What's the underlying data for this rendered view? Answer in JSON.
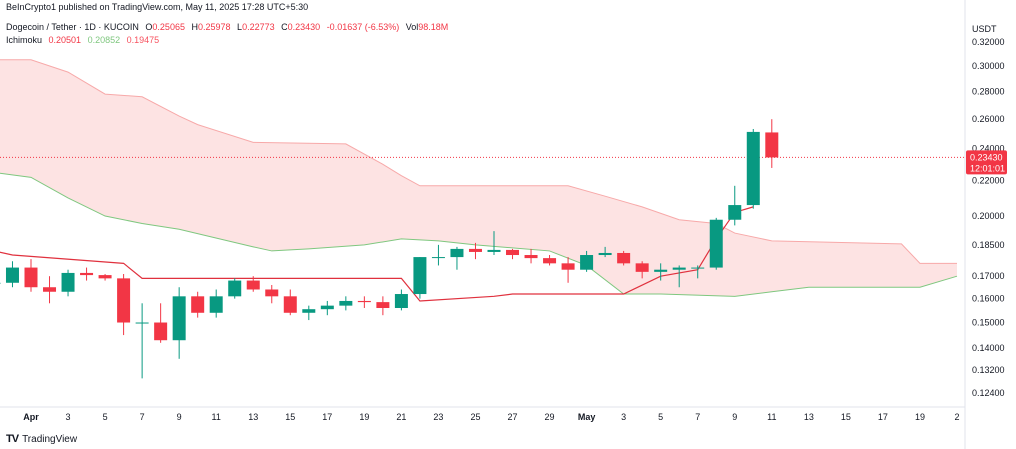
{
  "header": {
    "publisher_line": "BeInCrypto1 published on TradingView.com, May 11, 2025 17:28 UTC+5:30"
  },
  "legend": {
    "symbol": "Dogecoin / Tether · 1D · KUCOIN",
    "open_label": "O",
    "open": "0.25065",
    "high_label": "H",
    "high": "0.25978",
    "low_label": "L",
    "low": "0.22773",
    "close_label": "C",
    "close": "0.23430",
    "change": "-0.01637 (-6.53%)",
    "volume_label": "Vol",
    "volume": "98.18M",
    "indicator_name": "Ichimoku",
    "indicator_values": [
      "0.20501",
      "0.20852",
      "0.19475"
    ]
  },
  "currency": "USDT",
  "price_tag": {
    "price": "0.23430",
    "countdown": "12:01:01"
  },
  "footer": {
    "brand": "TradingView",
    "logo_text": "TV"
  },
  "colors": {
    "up": "#089981",
    "down": "#f23645",
    "cloud_fill": "#fde3e3",
    "cloud_upper": "#f7a9a9",
    "cloud_lower": "#7fc77f",
    "base_line": "#e0313e"
  },
  "chart_data": {
    "type": "candlestick",
    "title": "Dogecoin / Tether · 1D · KUCOIN",
    "y_scale": "log",
    "y_ticks": [
      "0.32000",
      "0.30000",
      "0.28000",
      "0.26000",
      "0.24000",
      "0.22000",
      "0.20000",
      "0.18500",
      "0.17000",
      "0.16000",
      "0.15000",
      "0.14000",
      "0.13200",
      "0.12400"
    ],
    "x_ticks": [
      "Apr",
      "3",
      "5",
      "7",
      "9",
      "11",
      "13",
      "15",
      "17",
      "19",
      "21",
      "23",
      "25",
      "27",
      "29",
      "May",
      "3",
      "5",
      "7",
      "9",
      "11",
      "13",
      "15",
      "17",
      "19",
      "2"
    ],
    "x_tick_dates": [
      "2025-04-01",
      "2025-04-03",
      "2025-04-05",
      "2025-04-07",
      "2025-04-09",
      "2025-04-11",
      "2025-04-13",
      "2025-04-15",
      "2025-04-17",
      "2025-04-19",
      "2025-04-21",
      "2025-04-23",
      "2025-04-25",
      "2025-04-27",
      "2025-04-29",
      "2025-05-01",
      "2025-05-03",
      "2025-05-05",
      "2025-05-07",
      "2025-05-09",
      "2025-05-11",
      "2025-05-13",
      "2025-05-15",
      "2025-05-17",
      "2025-05-19",
      "2025-05-21"
    ],
    "last_price": 0.2343,
    "candles": [
      {
        "date": "2025-03-30",
        "o": 0.167,
        "h": 0.1715,
        "l": 0.161,
        "c": 0.167
      },
      {
        "date": "2025-03-31",
        "o": 0.167,
        "h": 0.177,
        "l": 0.165,
        "c": 0.174
      },
      {
        "date": "2025-04-01",
        "o": 0.174,
        "h": 0.178,
        "l": 0.163,
        "c": 0.165
      },
      {
        "date": "2025-04-02",
        "o": 0.165,
        "h": 0.17,
        "l": 0.158,
        "c": 0.163
      },
      {
        "date": "2025-04-03",
        "o": 0.163,
        "h": 0.173,
        "l": 0.161,
        "c": 0.1715
      },
      {
        "date": "2025-04-04",
        "o": 0.1715,
        "h": 0.174,
        "l": 0.168,
        "c": 0.1705
      },
      {
        "date": "2025-04-05",
        "o": 0.1705,
        "h": 0.171,
        "l": 0.168,
        "c": 0.169
      },
      {
        "date": "2025-04-06",
        "o": 0.169,
        "h": 0.171,
        "l": 0.145,
        "c": 0.15
      },
      {
        "date": "2025-04-07",
        "o": 0.15,
        "h": 0.158,
        "l": 0.129,
        "c": 0.15
      },
      {
        "date": "2025-04-08",
        "o": 0.15,
        "h": 0.158,
        "l": 0.142,
        "c": 0.143
      },
      {
        "date": "2025-04-09",
        "o": 0.143,
        "h": 0.165,
        "l": 0.136,
        "c": 0.161
      },
      {
        "date": "2025-04-10",
        "o": 0.161,
        "h": 0.163,
        "l": 0.152,
        "c": 0.154
      },
      {
        "date": "2025-04-11",
        "o": 0.154,
        "h": 0.164,
        "l": 0.152,
        "c": 0.161
      },
      {
        "date": "2025-04-12",
        "o": 0.161,
        "h": 0.169,
        "l": 0.16,
        "c": 0.168
      },
      {
        "date": "2025-04-13",
        "o": 0.168,
        "h": 0.17,
        "l": 0.163,
        "c": 0.164
      },
      {
        "date": "2025-04-14",
        "o": 0.164,
        "h": 0.166,
        "l": 0.158,
        "c": 0.161
      },
      {
        "date": "2025-04-15",
        "o": 0.161,
        "h": 0.164,
        "l": 0.153,
        "c": 0.154
      },
      {
        "date": "2025-04-16",
        "o": 0.154,
        "h": 0.157,
        "l": 0.151,
        "c": 0.1555
      },
      {
        "date": "2025-04-17",
        "o": 0.1555,
        "h": 0.159,
        "l": 0.153,
        "c": 0.157
      },
      {
        "date": "2025-04-18",
        "o": 0.157,
        "h": 0.161,
        "l": 0.155,
        "c": 0.159
      },
      {
        "date": "2025-04-19",
        "o": 0.159,
        "h": 0.161,
        "l": 0.156,
        "c": 0.1585
      },
      {
        "date": "2025-04-20",
        "o": 0.1585,
        "h": 0.161,
        "l": 0.153,
        "c": 0.156
      },
      {
        "date": "2025-04-21",
        "o": 0.156,
        "h": 0.164,
        "l": 0.155,
        "c": 0.162
      },
      {
        "date": "2025-04-22",
        "o": 0.162,
        "h": 0.179,
        "l": 0.16,
        "c": 0.179
      },
      {
        "date": "2025-04-23",
        "o": 0.179,
        "h": 0.185,
        "l": 0.175,
        "c": 0.179
      },
      {
        "date": "2025-04-24",
        "o": 0.179,
        "h": 0.184,
        "l": 0.173,
        "c": 0.183
      },
      {
        "date": "2025-04-25",
        "o": 0.183,
        "h": 0.186,
        "l": 0.178,
        "c": 0.1815
      },
      {
        "date": "2025-04-26",
        "o": 0.1815,
        "h": 0.192,
        "l": 0.18,
        "c": 0.1825
      },
      {
        "date": "2025-04-27",
        "o": 0.1825,
        "h": 0.183,
        "l": 0.178,
        "c": 0.18
      },
      {
        "date": "2025-04-28",
        "o": 0.18,
        "h": 0.183,
        "l": 0.176,
        "c": 0.1785
      },
      {
        "date": "2025-04-29",
        "o": 0.1785,
        "h": 0.18,
        "l": 0.175,
        "c": 0.176
      },
      {
        "date": "2025-04-30",
        "o": 0.176,
        "h": 0.179,
        "l": 0.167,
        "c": 0.173
      },
      {
        "date": "2025-05-01",
        "o": 0.173,
        "h": 0.182,
        "l": 0.172,
        "c": 0.18
      },
      {
        "date": "2025-05-02",
        "o": 0.18,
        "h": 0.184,
        "l": 0.179,
        "c": 0.181
      },
      {
        "date": "2025-05-03",
        "o": 0.181,
        "h": 0.182,
        "l": 0.175,
        "c": 0.176
      },
      {
        "date": "2025-05-04",
        "o": 0.176,
        "h": 0.177,
        "l": 0.169,
        "c": 0.172
      },
      {
        "date": "2025-05-05",
        "o": 0.172,
        "h": 0.176,
        "l": 0.168,
        "c": 0.173
      },
      {
        "date": "2025-05-06",
        "o": 0.173,
        "h": 0.175,
        "l": 0.165,
        "c": 0.174
      },
      {
        "date": "2025-05-07",
        "o": 0.174,
        "h": 0.175,
        "l": 0.169,
        "c": 0.174
      },
      {
        "date": "2025-05-08",
        "o": 0.174,
        "h": 0.199,
        "l": 0.173,
        "c": 0.198
      },
      {
        "date": "2025-05-09",
        "o": 0.198,
        "h": 0.217,
        "l": 0.195,
        "c": 0.206
      },
      {
        "date": "2025-05-10",
        "o": 0.206,
        "h": 0.253,
        "l": 0.204,
        "c": 0.251
      },
      {
        "date": "2025-05-11",
        "o": 0.25065,
        "h": 0.25978,
        "l": 0.22773,
        "c": 0.2343
      }
    ],
    "base_line": [
      {
        "date": "2025-03-30",
        "v": 0.182
      },
      {
        "date": "2025-03-31",
        "v": 0.18
      },
      {
        "date": "2025-04-06",
        "v": 0.176
      },
      {
        "date": "2025-04-07",
        "v": 0.169
      },
      {
        "date": "2025-04-21",
        "v": 0.169
      },
      {
        "date": "2025-04-22",
        "v": 0.159
      },
      {
        "date": "2025-04-26",
        "v": 0.161
      },
      {
        "date": "2025-04-27",
        "v": 0.162
      },
      {
        "date": "2025-05-03",
        "v": 0.162
      },
      {
        "date": "2025-05-05",
        "v": 0.17
      },
      {
        "date": "2025-05-07",
        "v": 0.173
      },
      {
        "date": "2025-05-08",
        "v": 0.188
      },
      {
        "date": "2025-05-09",
        "v": 0.202
      },
      {
        "date": "2025-05-10",
        "v": 0.205
      }
    ],
    "cloud_upper": [
      {
        "date": "2025-03-30",
        "v": 0.305
      },
      {
        "date": "2025-04-01",
        "v": 0.305
      },
      {
        "date": "2025-04-03",
        "v": 0.295
      },
      {
        "date": "2025-04-05",
        "v": 0.278
      },
      {
        "date": "2025-04-07",
        "v": 0.276
      },
      {
        "date": "2025-04-09",
        "v": 0.262
      },
      {
        "date": "2025-04-10",
        "v": 0.256
      },
      {
        "date": "2025-04-13",
        "v": 0.244
      },
      {
        "date": "2025-04-18",
        "v": 0.243
      },
      {
        "date": "2025-04-20",
        "v": 0.23
      },
      {
        "date": "2025-04-21",
        "v": 0.223
      },
      {
        "date": "2025-04-22",
        "v": 0.217
      },
      {
        "date": "2025-04-30",
        "v": 0.217
      },
      {
        "date": "2025-05-02",
        "v": 0.211
      },
      {
        "date": "2025-05-04",
        "v": 0.205
      },
      {
        "date": "2025-05-06",
        "v": 0.198
      },
      {
        "date": "2025-05-07",
        "v": 0.197
      },
      {
        "date": "2025-05-08",
        "v": 0.196
      },
      {
        "date": "2025-05-09",
        "v": 0.191
      },
      {
        "date": "2025-05-11",
        "v": 0.187
      },
      {
        "date": "2025-05-18",
        "v": 0.1855
      },
      {
        "date": "2025-05-19",
        "v": 0.176
      },
      {
        "date": "2025-05-21",
        "v": 0.176
      }
    ],
    "cloud_lower": [
      {
        "date": "2025-03-30",
        "v": 0.225
      },
      {
        "date": "2025-04-01",
        "v": 0.222
      },
      {
        "date": "2025-04-03",
        "v": 0.21
      },
      {
        "date": "2025-04-05",
        "v": 0.2
      },
      {
        "date": "2025-04-07",
        "v": 0.196
      },
      {
        "date": "2025-04-09",
        "v": 0.193
      },
      {
        "date": "2025-04-13",
        "v": 0.184
      },
      {
        "date": "2025-04-14",
        "v": 0.182
      },
      {
        "date": "2025-04-16",
        "v": 0.183
      },
      {
        "date": "2025-04-19",
        "v": 0.185
      },
      {
        "date": "2025-04-21",
        "v": 0.188
      },
      {
        "date": "2025-04-23",
        "v": 0.187
      },
      {
        "date": "2025-04-25",
        "v": 0.185
      },
      {
        "date": "2025-04-29",
        "v": 0.182
      },
      {
        "date": "2025-05-01",
        "v": 0.175
      },
      {
        "date": "2025-05-03",
        "v": 0.162
      },
      {
        "date": "2025-05-05",
        "v": 0.162
      },
      {
        "date": "2025-05-09",
        "v": 0.161
      },
      {
        "date": "2025-05-11",
        "v": 0.163
      },
      {
        "date": "2025-05-13",
        "v": 0.165
      },
      {
        "date": "2025-05-19",
        "v": 0.165
      },
      {
        "date": "2025-05-21",
        "v": 0.17
      }
    ]
  }
}
